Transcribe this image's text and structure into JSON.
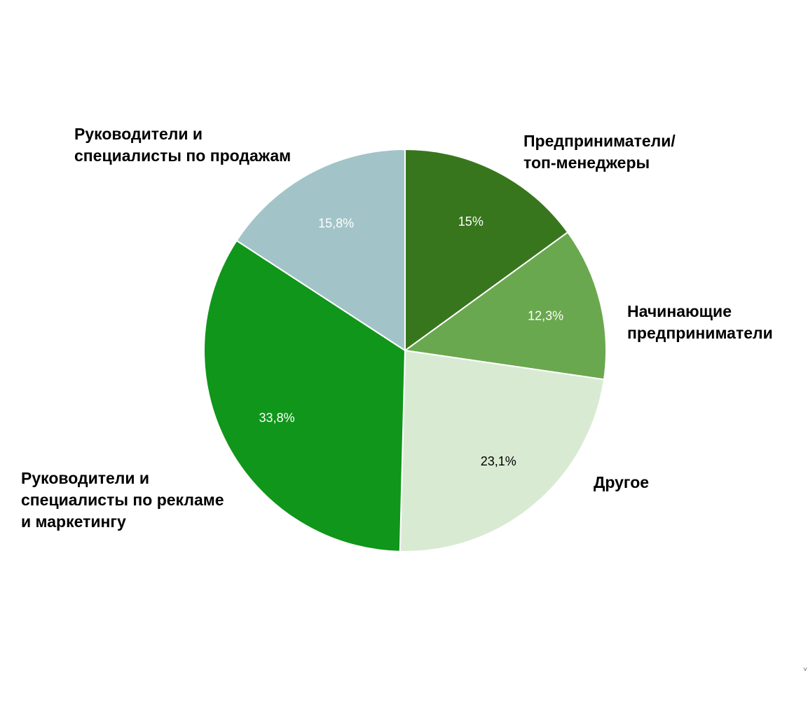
{
  "chart_data": {
    "type": "pie",
    "title": "",
    "start_angle_deg": 0,
    "direction": "clockwise",
    "slices": [
      {
        "label_lines": [
          "Предприниматели/",
          "топ-менеджеры"
        ],
        "value": 15.0,
        "value_label": "15%",
        "color": "#38761d",
        "value_label_color": "#ffffff"
      },
      {
        "label_lines": [
          "Начинающие",
          "предприниматели"
        ],
        "value": 12.3,
        "value_label": "12,3%",
        "color": "#6aa84f",
        "value_label_color": "#ffffff"
      },
      {
        "label_lines": [
          "Другое"
        ],
        "value": 23.1,
        "value_label": "23,1%",
        "color": "#d9ead3",
        "value_label_color": "#000000"
      },
      {
        "label_lines": [
          "Руководители и",
          "специалисты по рекламе",
          "и маркетингу"
        ],
        "value": 33.8,
        "value_label": "33,8%",
        "color": "#10961a",
        "value_label_color": "#ffffff"
      },
      {
        "label_lines": [
          "Руководители и",
          "специалисты по продажам"
        ],
        "value": 15.8,
        "value_label": "15,8%",
        "color": "#a2c4c9",
        "value_label_color": "#ffffff"
      }
    ]
  },
  "footer": {
    "corner_mark": "˅"
  }
}
